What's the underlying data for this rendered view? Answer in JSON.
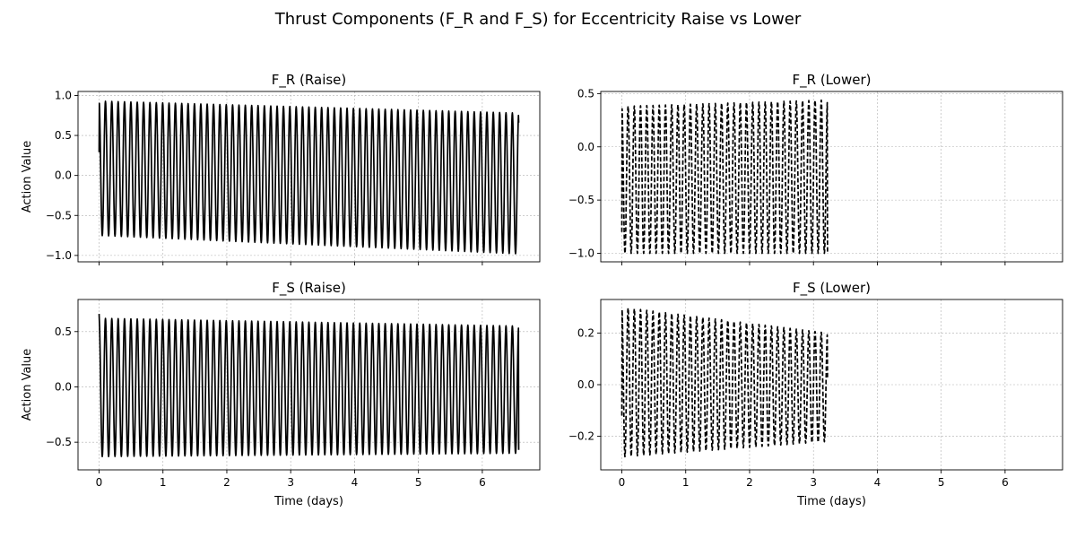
{
  "figure": {
    "suptitle": "Thrust Components (F_R and F_S) for Eccentricity Raise vs Lower"
  },
  "chart_data": [
    {
      "type": "line",
      "title": "F_R (Raise)",
      "xlabel": "",
      "ylabel": "Action Value",
      "xlim": [
        -0.33,
        6.9
      ],
      "ylim": [
        -1.08,
        1.05
      ],
      "xticks": [
        0,
        1,
        2,
        3,
        4,
        5,
        6
      ],
      "show_xticklabels": false,
      "yticks": [
        -1.0,
        -0.5,
        0.0,
        0.5,
        1.0
      ],
      "ytick_labels": [
        "−1.0",
        "−0.5",
        "0.0",
        "0.5",
        "1.0"
      ],
      "grid": true,
      "series": [
        {
          "style": "solid",
          "color": "#000000",
          "x_start": 0.0,
          "x_end": 6.57,
          "cycles": 66,
          "max_start": 0.93,
          "max_end": 0.78,
          "min_start": -0.75,
          "min_end": -0.98,
          "initial": 0.29,
          "final": 0.66
        }
      ]
    },
    {
      "type": "line",
      "title": "F_R (Lower)",
      "xlabel": "",
      "ylabel": "",
      "xlim": [
        -0.33,
        6.9
      ],
      "ylim": [
        -1.08,
        0.52
      ],
      "xticks": [
        0,
        1,
        2,
        3,
        4,
        5,
        6
      ],
      "show_xticklabels": false,
      "yticks": [
        -1.0,
        -0.5,
        0.0,
        0.5
      ],
      "ytick_labels": [
        "−1.0",
        "−0.5",
        "0.0",
        "0.5"
      ],
      "grid": true,
      "series": [
        {
          "style": "dashed",
          "color": "#000000",
          "x_start": 0.0,
          "x_end": 3.22,
          "cycles": 33,
          "max_start": 0.38,
          "max_end": 0.44,
          "min_start": -1.0,
          "min_end": -1.0,
          "initial": -0.8,
          "final": -1.0
        }
      ]
    },
    {
      "type": "line",
      "title": "F_S (Raise)",
      "xlabel": "Time (days)",
      "ylabel": "Action Value",
      "xlim": [
        -0.33,
        6.9
      ],
      "ylim": [
        -0.75,
        0.79
      ],
      "xticks": [
        0,
        1,
        2,
        3,
        4,
        5,
        6
      ],
      "show_xticklabels": true,
      "yticks": [
        -0.5,
        0.0,
        0.5
      ],
      "ytick_labels": [
        "−0.5",
        "0.0",
        "0.5"
      ],
      "grid": true,
      "series": [
        {
          "style": "solid",
          "color": "#000000",
          "x_start": 0.0,
          "x_end": 6.57,
          "cycles": 66,
          "max_start": 0.62,
          "max_end": 0.55,
          "min_start": -0.63,
          "min_end": -0.6,
          "initial": 0.66,
          "final": -0.57
        }
      ]
    },
    {
      "type": "line",
      "title": "F_S (Lower)",
      "xlabel": "Time (days)",
      "ylabel": "",
      "xlim": [
        -0.33,
        6.9
      ],
      "ylim": [
        -0.33,
        0.33
      ],
      "xticks": [
        0,
        1,
        2,
        3,
        4,
        5,
        6
      ],
      "show_xticklabels": true,
      "yticks": [
        -0.2,
        0.0,
        0.2
      ],
      "ytick_labels": [
        "−0.2",
        "0.0",
        "0.2"
      ],
      "grid": true,
      "series": [
        {
          "style": "dashed",
          "color": "#000000",
          "x_start": 0.0,
          "x_end": 3.22,
          "cycles": 33,
          "max_start": 0.3,
          "max_end": 0.2,
          "min_start": -0.28,
          "min_end": -0.22,
          "initial": -0.12,
          "final": 0.02
        }
      ]
    }
  ]
}
